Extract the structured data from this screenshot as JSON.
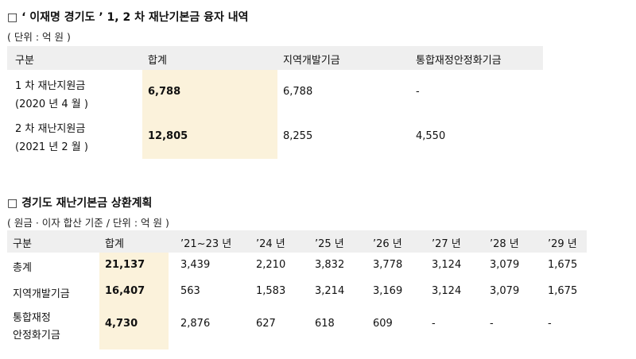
{
  "section1": {
    "title": "□ ‘ 이재명 경기도 ’ 1, 2 차 재난기본금 융자 내역",
    "unit": "( 단위 : 억 원 )",
    "headers": [
      "구분",
      "합계",
      "지역개발기금",
      "통합재정안정화기금"
    ],
    "rows": [
      {
        "label1": "1 차 재난지원금",
        "label2": "(2020 년 4 월 )",
        "total": "6,788",
        "regional": "6,788",
        "integrated": "-"
      },
      {
        "label1": "2 차 재난지원금",
        "label2": "(2021 년 2 월 )",
        "total": "12,805",
        "regional": "8,255",
        "integrated": "4,550"
      }
    ]
  },
  "section2": {
    "title": "□ 경기도 재난기본금 상환계획",
    "unit": "( 원금 · 이자 합산 기준 / 단위 : 억 원 )",
    "headers": [
      "구분",
      "합계",
      "’21~23 년",
      "’24 년",
      "’25 년",
      "’26 년",
      "’27 년",
      "’28 년",
      "’29 년"
    ],
    "rows": [
      {
        "label": "총계",
        "label2": "",
        "total": "21,137",
        "values": [
          "3,439",
          "2,210",
          "3,832",
          "3,778",
          "3,124",
          "3,079",
          "1,675"
        ]
      },
      {
        "label": "지역개발기금",
        "label2": "",
        "total": "16,407",
        "values": [
          "563",
          "1,583",
          "3,214",
          "3,169",
          "3,124",
          "3,079",
          "1,675"
        ]
      },
      {
        "label": "통합재정",
        "label2": "안정화기금",
        "total": "4,730",
        "values": [
          "2,876",
          "627",
          "618",
          "609",
          "-",
          "-",
          "-"
        ]
      }
    ]
  }
}
